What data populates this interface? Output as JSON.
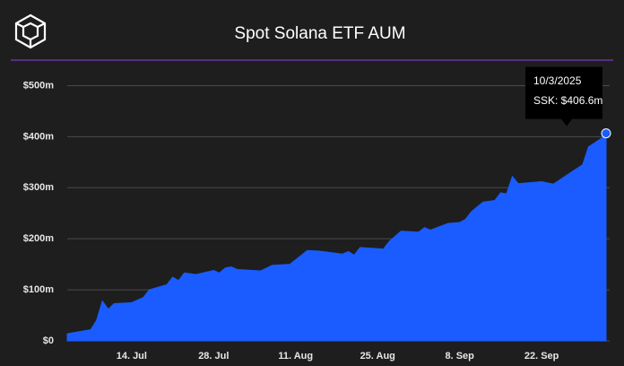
{
  "chart_data": {
    "type": "area",
    "title": "Spot Solana ETF AUM",
    "x": [
      "2025-07-03",
      "2025-07-07",
      "2025-07-08",
      "2025-07-09",
      "2025-07-10",
      "2025-07-11",
      "2025-07-14",
      "2025-07-16",
      "2025-07-17",
      "2025-07-20",
      "2025-07-21",
      "2025-07-22",
      "2025-07-23",
      "2025-07-25",
      "2025-07-28",
      "2025-07-29",
      "2025-07-30",
      "2025-07-31",
      "2025-08-01",
      "2025-08-05",
      "2025-08-07",
      "2025-08-10",
      "2025-08-13",
      "2025-08-15",
      "2025-08-19",
      "2025-08-20",
      "2025-08-21",
      "2025-08-22",
      "2025-08-26",
      "2025-08-27",
      "2025-08-29",
      "2025-09-01",
      "2025-09-02",
      "2025-09-03",
      "2025-09-06",
      "2025-09-08",
      "2025-09-09",
      "2025-09-10",
      "2025-09-12",
      "2025-09-14",
      "2025-09-15",
      "2025-09-16",
      "2025-09-17",
      "2025-09-18",
      "2025-09-22",
      "2025-09-24",
      "2025-09-27",
      "2025-09-29",
      "2025-09-30",
      "2025-10-02",
      "2025-10-03"
    ],
    "series": [
      {
        "name": "SSK",
        "color": "#1a5cff",
        "values": [
          14,
          22,
          40,
          78,
          62,
          73,
          75,
          85,
          100,
          110,
          125,
          118,
          133,
          130,
          138,
          133,
          143,
          145,
          140,
          137,
          148,
          150,
          177,
          176,
          170,
          175,
          168,
          183,
          180,
          195,
          215,
          213,
          222,
          217,
          230,
          232,
          238,
          253,
          272,
          275,
          290,
          288,
          322,
          308,
          312,
          307,
          330,
          345,
          380,
          395,
          406.6
        ]
      }
    ],
    "xlim": [
      "2025-07-03",
      "2025-10-03"
    ],
    "xticks": [
      {
        "value": "2025-07-14",
        "label": "14. Jul"
      },
      {
        "value": "2025-07-28",
        "label": "28. Jul"
      },
      {
        "value": "2025-08-11",
        "label": "11. Aug"
      },
      {
        "value": "2025-08-25",
        "label": "25. Aug"
      },
      {
        "value": "2025-09-08",
        "label": "8. Sep"
      },
      {
        "value": "2025-09-22",
        "label": "22. Sep"
      }
    ],
    "ylim": [
      0,
      550
    ],
    "yticks": [
      {
        "value": 0,
        "label": "$0"
      },
      {
        "value": 100,
        "label": "$100m"
      },
      {
        "value": 200,
        "label": "$200m"
      },
      {
        "value": 300,
        "label": "$300m"
      },
      {
        "value": 400,
        "label": "$400m"
      },
      {
        "value": 500,
        "label": "$500m"
      }
    ],
    "grid": true,
    "tooltip": {
      "date": "10/3/2025",
      "text": "SSK: $406.6m"
    }
  }
}
